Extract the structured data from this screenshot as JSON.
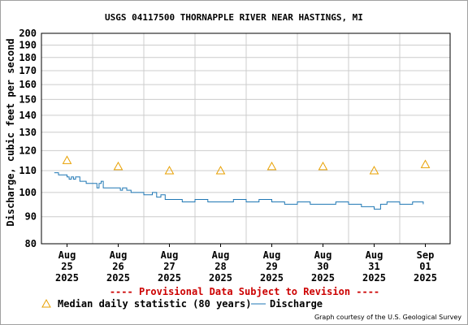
{
  "chart_data": {
    "type": "line",
    "title": "USGS 04117500 THORNAPPLE RIVER NEAR HASTINGS, MI",
    "ylabel": "Discharge, cubic feet per second",
    "xlabel": "",
    "y_scale": "log",
    "ylim": [
      80,
      200
    ],
    "y_ticks": [
      "80",
      "90",
      "100",
      "110",
      "120",
      "130",
      "140",
      "150",
      "160",
      "170",
      "180",
      "190",
      "200"
    ],
    "y_tick_values": [
      80,
      90,
      100,
      110,
      120,
      130,
      140,
      150,
      160,
      170,
      180,
      190,
      200
    ],
    "x_ticks": [
      {
        "month": "Aug",
        "day": "25",
        "year": "2025"
      },
      {
        "month": "Aug",
        "day": "26",
        "year": "2025"
      },
      {
        "month": "Aug",
        "day": "27",
        "year": "2025"
      },
      {
        "month": "Aug",
        "day": "28",
        "year": "2025"
      },
      {
        "month": "Aug",
        "day": "29",
        "year": "2025"
      },
      {
        "month": "Aug",
        "day": "30",
        "year": "2025"
      },
      {
        "month": "Aug",
        "day": "31",
        "year": "2025"
      },
      {
        "month": "Sep",
        "day": "01",
        "year": "2025"
      }
    ],
    "grid": true,
    "series": [
      {
        "name": "Discharge",
        "color": "#1f77b4",
        "points": [
          [
            "2025-08-24T18:00",
            109
          ],
          [
            "2025-08-24T20:00",
            108
          ],
          [
            "2025-08-24T22:00",
            108
          ],
          [
            "2025-08-25T00:00",
            107
          ],
          [
            "2025-08-25T01:00",
            106
          ],
          [
            "2025-08-25T02:00",
            107
          ],
          [
            "2025-08-25T03:00",
            106
          ],
          [
            "2025-08-25T04:00",
            107
          ],
          [
            "2025-08-25T06:00",
            105
          ],
          [
            "2025-08-25T09:00",
            104
          ],
          [
            "2025-08-25T12:00",
            104
          ],
          [
            "2025-08-25T14:00",
            102
          ],
          [
            "2025-08-25T15:00",
            104
          ],
          [
            "2025-08-25T16:00",
            105
          ],
          [
            "2025-08-25T17:00",
            102
          ],
          [
            "2025-08-25T20:00",
            102
          ],
          [
            "2025-08-26T00:00",
            102
          ],
          [
            "2025-08-26T01:00",
            101
          ],
          [
            "2025-08-26T02:00",
            102
          ],
          [
            "2025-08-26T04:00",
            101
          ],
          [
            "2025-08-26T06:00",
            100
          ],
          [
            "2025-08-26T09:00",
            100
          ],
          [
            "2025-08-26T12:00",
            99
          ],
          [
            "2025-08-26T15:00",
            99
          ],
          [
            "2025-08-26T16:00",
            100
          ],
          [
            "2025-08-26T18:00",
            98
          ],
          [
            "2025-08-26T20:00",
            99
          ],
          [
            "2025-08-26T22:00",
            97
          ],
          [
            "2025-08-27T02:00",
            97
          ],
          [
            "2025-08-27T06:00",
            96
          ],
          [
            "2025-08-27T12:00",
            97
          ],
          [
            "2025-08-27T18:00",
            96
          ],
          [
            "2025-08-28T00:00",
            96
          ],
          [
            "2025-08-28T06:00",
            97
          ],
          [
            "2025-08-28T12:00",
            96
          ],
          [
            "2025-08-28T18:00",
            97
          ],
          [
            "2025-08-29T00:00",
            96
          ],
          [
            "2025-08-29T06:00",
            95
          ],
          [
            "2025-08-29T12:00",
            96
          ],
          [
            "2025-08-29T18:00",
            95
          ],
          [
            "2025-08-30T00:00",
            95
          ],
          [
            "2025-08-30T06:00",
            96
          ],
          [
            "2025-08-30T12:00",
            95
          ],
          [
            "2025-08-30T18:00",
            94
          ],
          [
            "2025-08-31T00:00",
            93
          ],
          [
            "2025-08-31T03:00",
            95
          ],
          [
            "2025-08-31T06:00",
            96
          ],
          [
            "2025-08-31T12:00",
            95
          ],
          [
            "2025-08-31T18:00",
            96
          ],
          [
            "2025-08-31T23:00",
            95
          ]
        ]
      },
      {
        "name": "Median daily statistic (80 years)",
        "color": "#e8a000",
        "marker": "triangle",
        "points": [
          [
            "2025-08-25T00:00",
            115
          ],
          [
            "2025-08-26T00:00",
            112
          ],
          [
            "2025-08-27T00:00",
            110
          ],
          [
            "2025-08-28T00:00",
            110
          ],
          [
            "2025-08-29T00:00",
            112
          ],
          [
            "2025-08-30T00:00",
            112
          ],
          [
            "2025-08-31T00:00",
            110
          ],
          [
            "2025-09-01T00:00",
            113
          ]
        ]
      }
    ],
    "annotation": "---- Provisional Data Subject to Revision ----",
    "credit": "Graph courtesy of the U.S. Geological Survey",
    "legend": [
      {
        "label": "Median daily statistic (80 years)",
        "symbol": "triangle"
      },
      {
        "label": "Discharge",
        "symbol": "line"
      }
    ]
  }
}
